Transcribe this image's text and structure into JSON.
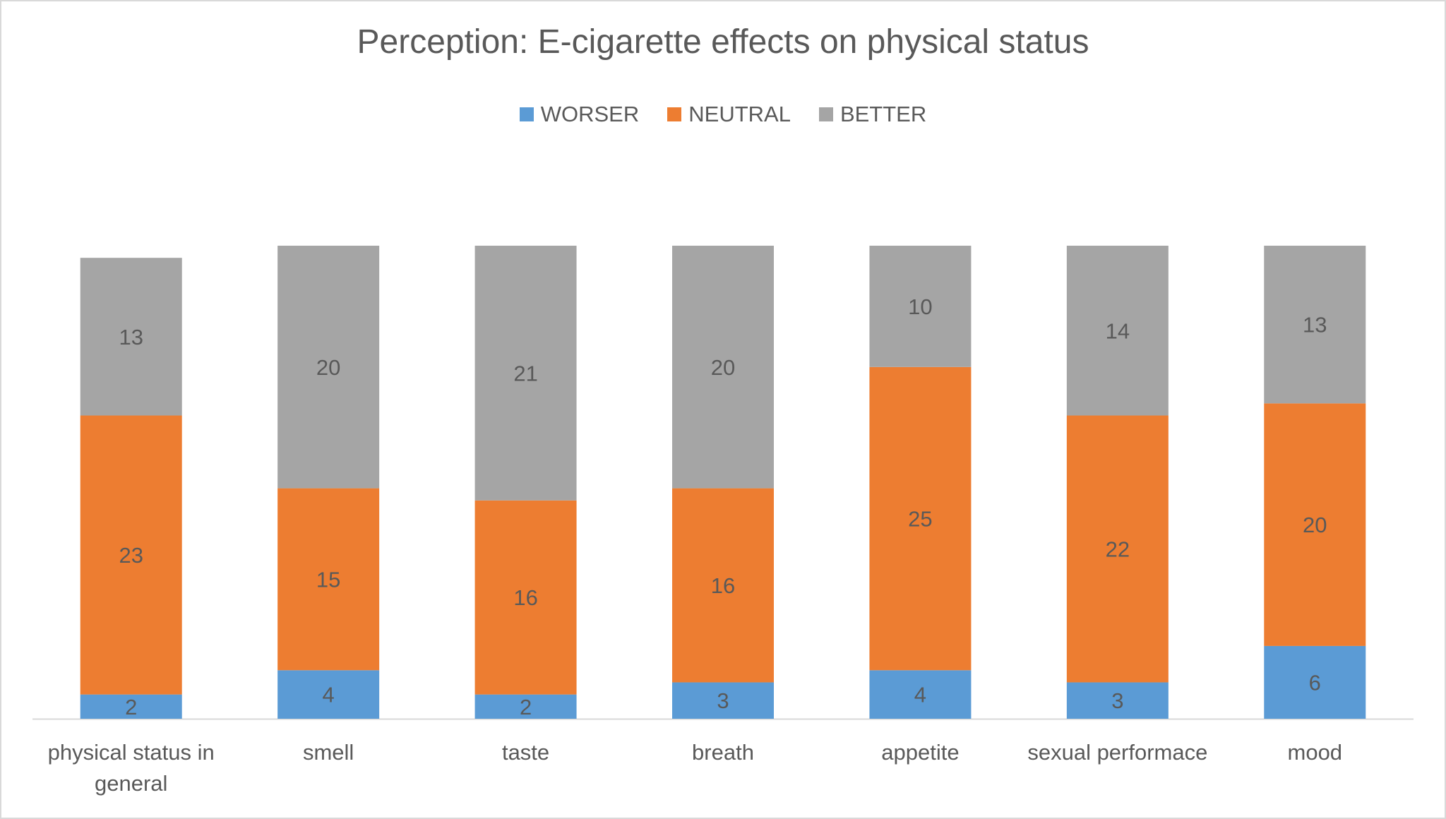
{
  "chart_data": {
    "type": "bar",
    "stacked": true,
    "title": "Perception: E-cigarette effects on physical status",
    "categories": [
      [
        "physical status in",
        "general"
      ],
      [
        "smell"
      ],
      [
        "taste"
      ],
      [
        "breath"
      ],
      [
        "appetite"
      ],
      [
        "sexual performace"
      ],
      [
        "mood"
      ]
    ],
    "series": [
      {
        "name": "WORSER",
        "color": "#5b9bd5",
        "values": [
          2,
          4,
          2,
          3,
          4,
          3,
          6
        ]
      },
      {
        "name": "NEUTRAL",
        "color": "#ed7d31",
        "values": [
          23,
          15,
          16,
          16,
          25,
          22,
          20
        ]
      },
      {
        "name": "BETTER",
        "color": "#a5a5a5",
        "values": [
          13,
          20,
          21,
          20,
          10,
          14,
          13
        ]
      }
    ],
    "ylim": [
      0,
      39
    ],
    "grid": false,
    "legend": "top"
  }
}
